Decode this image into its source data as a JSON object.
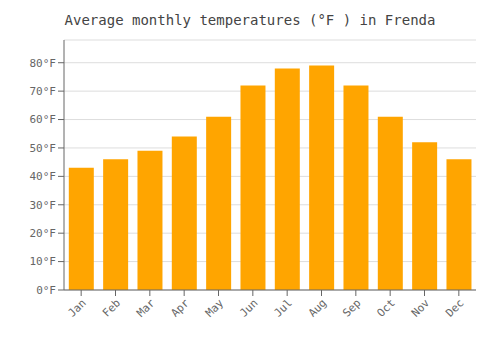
{
  "chart_data": {
    "type": "bar",
    "title": "Average monthly temperatures (°F ) in Frenda",
    "categories": [
      "Jan",
      "Feb",
      "Mar",
      "Apr",
      "May",
      "Jun",
      "Jul",
      "Aug",
      "Sep",
      "Oct",
      "Nov",
      "Dec"
    ],
    "values": [
      43,
      46,
      49,
      54,
      61,
      72,
      78,
      79,
      72,
      61,
      52,
      46
    ],
    "color": "#FFA500",
    "ylim": [
      0,
      88
    ],
    "yticks": [
      {
        "value": 0,
        "label": "0°F"
      },
      {
        "value": 10,
        "label": "10°F"
      },
      {
        "value": 20,
        "label": "20°F"
      },
      {
        "value": 30,
        "label": "30°F"
      },
      {
        "value": 40,
        "label": "40°F"
      },
      {
        "value": 50,
        "label": "50°F"
      },
      {
        "value": 60,
        "label": "60°F"
      },
      {
        "value": 70,
        "label": "70°F"
      },
      {
        "value": 80,
        "label": "80°F"
      }
    ],
    "grid": true
  }
}
